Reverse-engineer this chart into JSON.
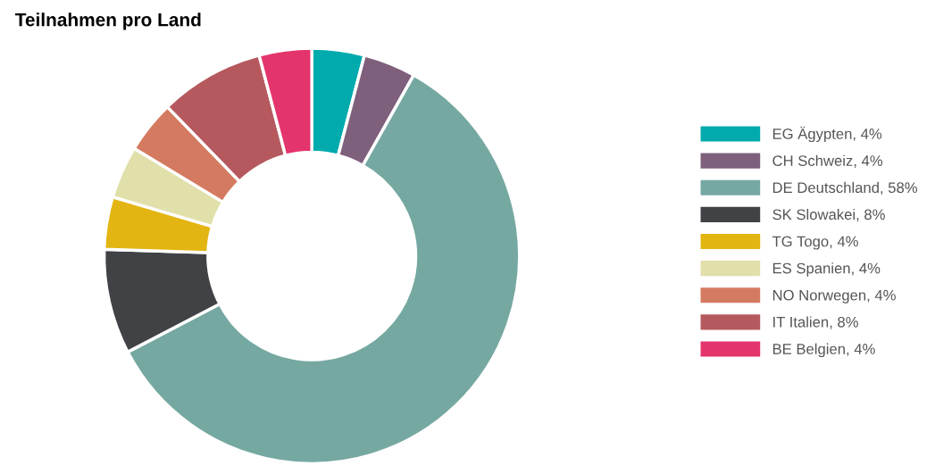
{
  "chart_data": {
    "type": "donut",
    "title": "Teilnahmen pro Land",
    "categories": [
      "EG Ägypten",
      "CH Schweiz",
      "DE Deutschland",
      "SK Slowakei",
      "TG Togo",
      "ES Spanien",
      "NO Norwegen",
      "IT Italien",
      "BE Belgien"
    ],
    "values": [
      4,
      4,
      58,
      8,
      4,
      4,
      4,
      8,
      4
    ],
    "value_labels": [
      "4%",
      "4%",
      "58%",
      "8%",
      "4%",
      "4%",
      "4%",
      "8%",
      "4%"
    ],
    "colors": [
      "#00aaad",
      "#7e5f7c",
      "#76a8a2",
      "#414246",
      "#e3b512",
      "#e1dfaa",
      "#d47a60",
      "#b5595e",
      "#e4346c"
    ],
    "legend": "right"
  }
}
